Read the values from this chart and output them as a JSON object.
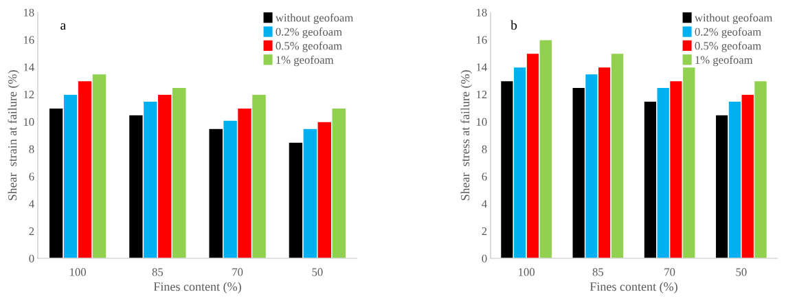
{
  "chart_data": [
    {
      "type": "bar",
      "annotations": [
        "a"
      ],
      "xlabel": "Fines content (%)",
      "ylabel": "Shear  strain at failure (%)",
      "categories": [
        "100",
        "85",
        "70",
        "50"
      ],
      "series": [
        {
          "name": "without geofoam",
          "color": "#000000",
          "values": [
            11,
            10.5,
            9.5,
            8.5
          ]
        },
        {
          "name": "0.2% geofoam",
          "color": "#00b0f0",
          "values": [
            12,
            11.5,
            10.1,
            9.5
          ]
        },
        {
          "name": "0.5% geofoam",
          "color": "#ff0000",
          "values": [
            13,
            12,
            11,
            10
          ]
        },
        {
          "name": "1% geofoam",
          "color": "#92d050",
          "values": [
            13.5,
            12.5,
            12,
            11
          ]
        }
      ],
      "ylim": [
        0,
        18
      ],
      "yticks": [
        0,
        2,
        4,
        6,
        8,
        10,
        12,
        14,
        16,
        18
      ],
      "grid": false,
      "legend": "top right"
    },
    {
      "type": "bar",
      "annotations": [
        "b"
      ],
      "xlabel": "Fines content (%)",
      "ylabel": "Shear  stress at failure (%)",
      "categories": [
        "100",
        "85",
        "70",
        "50"
      ],
      "series": [
        {
          "name": "without geofoam",
          "color": "#000000",
          "values": [
            13,
            12.5,
            11.5,
            10.5
          ]
        },
        {
          "name": "0.2% geofoam",
          "color": "#00b0f0",
          "values": [
            14,
            13.5,
            12.5,
            11.5
          ]
        },
        {
          "name": "0.5% geofoam",
          "color": "#ff0000",
          "values": [
            15,
            14,
            13,
            12
          ]
        },
        {
          "name": "1% geofoam",
          "color": "#92d050",
          "values": [
            16,
            15,
            14,
            13
          ]
        }
      ],
      "ylim": [
        0,
        18
      ],
      "yticks": [
        0,
        2,
        4,
        6,
        8,
        10,
        12,
        14,
        16,
        18
      ],
      "grid": false,
      "legend": "top right"
    }
  ]
}
